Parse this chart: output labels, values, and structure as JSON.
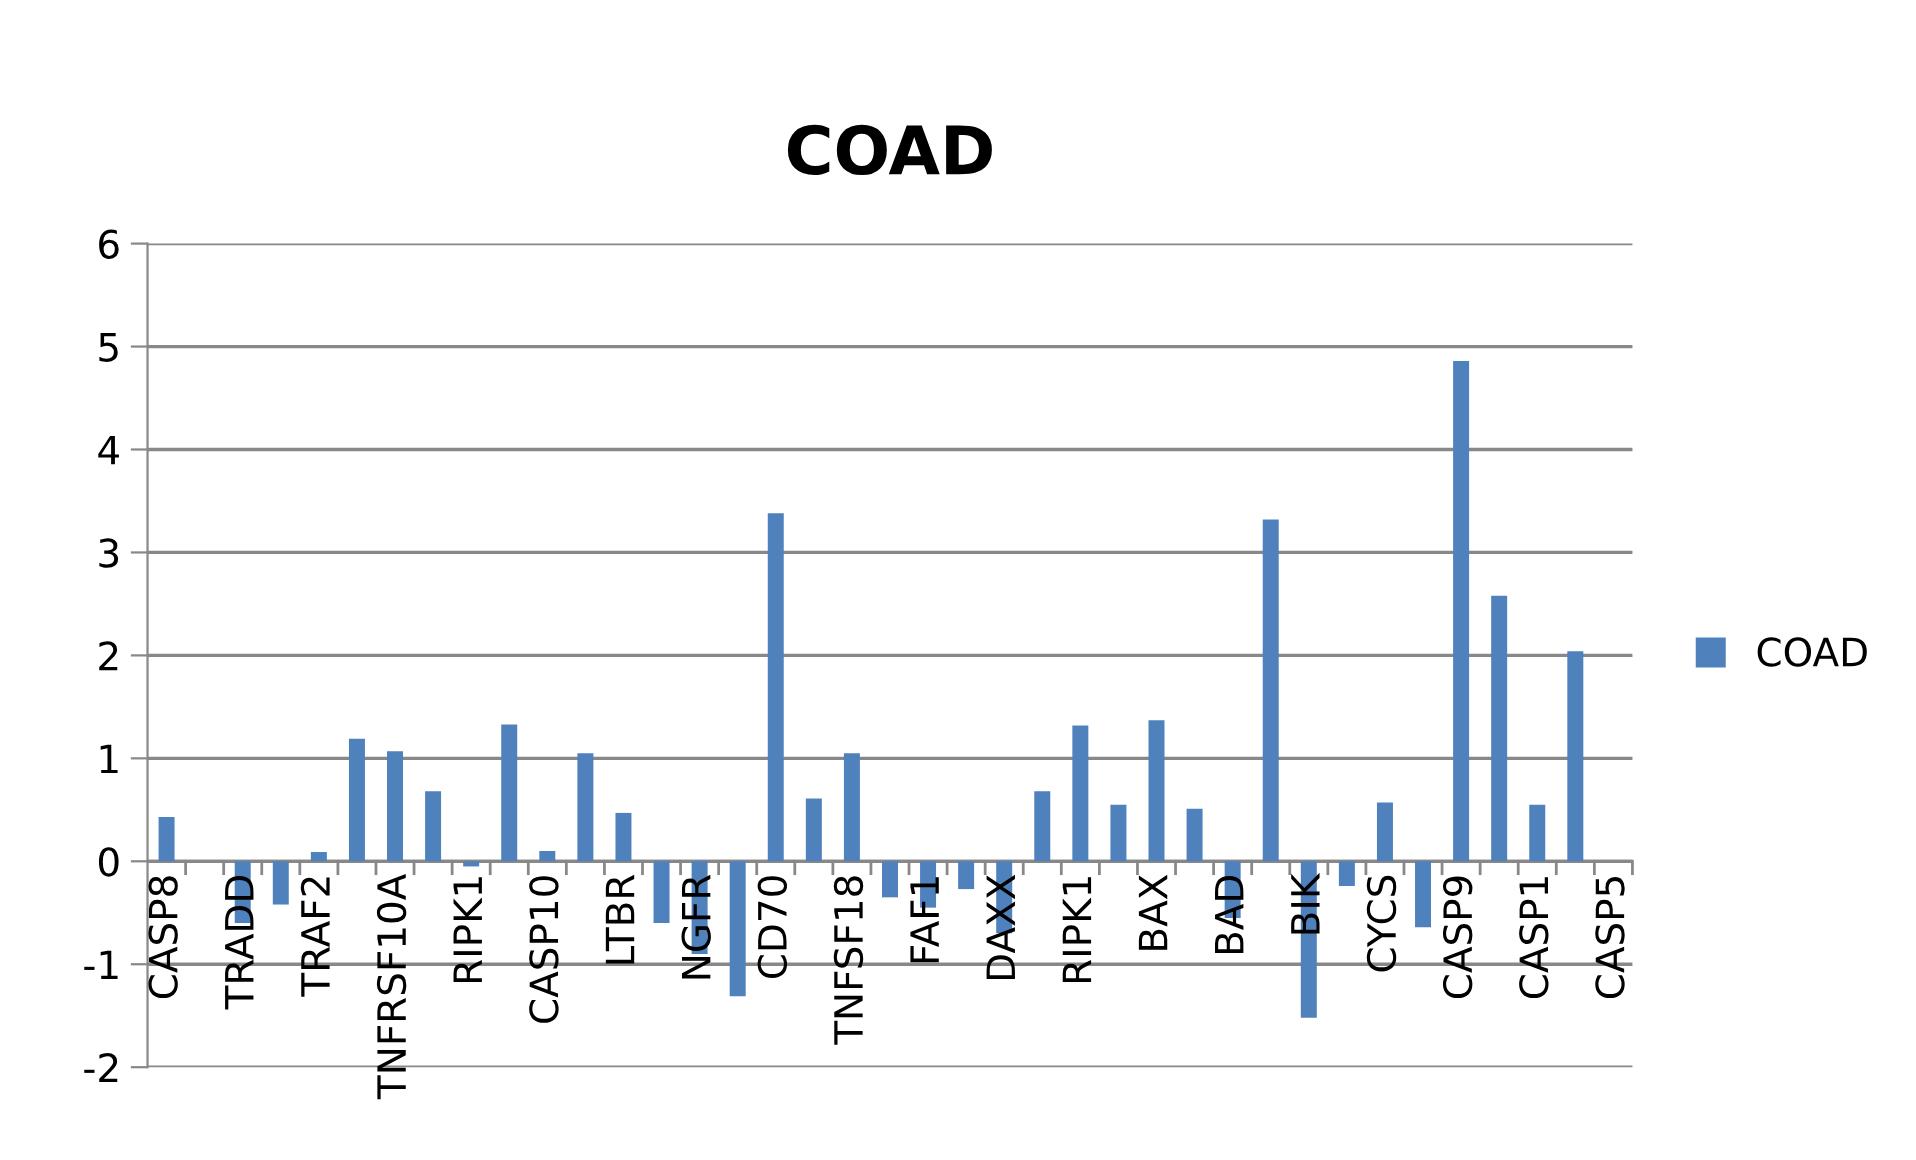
{
  "chart_data": {
    "type": "bar",
    "title": "COAD",
    "categories": [
      "CASP8",
      null,
      "TRADD",
      null,
      "TRAF2",
      null,
      "TNFRSF10A",
      null,
      "RIPK1",
      null,
      "CASP10",
      null,
      "LTBR",
      null,
      "NGFR",
      null,
      "CD70",
      null,
      "TNFSF18",
      null,
      "FAF1",
      null,
      "DAXX",
      null,
      "RIPK1",
      null,
      "BAX",
      null,
      "BAD",
      null,
      "BIK",
      null,
      "CYCS",
      null,
      "CASP9",
      null,
      "CASP1",
      null,
      "CASP5"
    ],
    "series": [
      {
        "name": "COAD",
        "color": "#4f81bd",
        "values": [
          0.43,
          0,
          -0.6,
          -0.42,
          0.09,
          1.19,
          1.07,
          0.68,
          -0.05,
          1.33,
          0.1,
          1.05,
          0.47,
          -0.6,
          -0.9,
          -1.31,
          3.38,
          0.61,
          1.05,
          -0.35,
          -0.45,
          -0.27,
          -0.7,
          0.68,
          1.32,
          0.55,
          1.37,
          0.51,
          -0.55,
          3.32,
          -1.52,
          -0.24,
          0.57,
          -0.64,
          4.86,
          2.58,
          0.55,
          2.04,
          0
        ]
      }
    ],
    "ylim": [
      -2,
      6
    ],
    "yticks": [
      -2,
      -1,
      0,
      1,
      2,
      3,
      4,
      5,
      6
    ],
    "grid": "y",
    "legend": "right"
  }
}
